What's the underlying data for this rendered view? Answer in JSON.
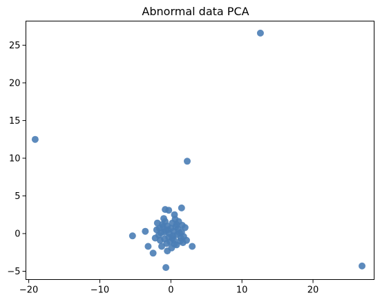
{
  "chart_data": {
    "type": "scatter",
    "title": "Abnormal data PCA",
    "xlabel": "",
    "ylabel": "",
    "xlim": [
      -20.4,
      28.6
    ],
    "ylim": [
      -6.1,
      28.2
    ],
    "xticks": [
      -20,
      -10,
      0,
      10,
      20
    ],
    "yticks": [
      -5,
      0,
      5,
      10,
      15,
      20,
      25
    ],
    "grid": false,
    "point_color": "#4a7db5",
    "points": [
      {
        "x": 12.6,
        "y": 26.6
      },
      {
        "x": -19.1,
        "y": 12.5
      },
      {
        "x": 2.3,
        "y": 9.6
      },
      {
        "x": 26.9,
        "y": -4.3
      },
      {
        "x": -0.7,
        "y": -4.5
      },
      {
        "x": -5.4,
        "y": -0.3
      },
      {
        "x": -3.6,
        "y": 0.3
      },
      {
        "x": -3.2,
        "y": -1.7
      },
      {
        "x": -2.5,
        "y": -2.6
      },
      {
        "x": 1.5,
        "y": 3.4
      },
      {
        "x": -0.8,
        "y": 3.2
      },
      {
        "x": -0.3,
        "y": 3.1
      },
      {
        "x": 3.0,
        "y": -1.7
      },
      {
        "x": 0.5,
        "y": 2.5
      },
      {
        "x": -1.0,
        "y": 2.0
      },
      {
        "x": 1.6,
        "y": 1.1
      },
      {
        "x": -2.0,
        "y": 0.5
      },
      {
        "x": -1.5,
        "y": -0.9
      },
      {
        "x": 1.8,
        "y": -0.4
      },
      {
        "x": -0.5,
        "y": -2.3
      },
      {
        "x": 0.8,
        "y": -1.5
      },
      {
        "x": -1.2,
        "y": 1.2
      },
      {
        "x": 0.2,
        "y": 1.4
      },
      {
        "x": 1.0,
        "y": 0.6
      },
      {
        "x": -0.9,
        "y": 0.2
      },
      {
        "x": 0.4,
        "y": -0.8
      },
      {
        "x": -0.2,
        "y": 0.0
      },
      {
        "x": 1.3,
        "y": -1.0
      },
      {
        "x": -1.7,
        "y": -0.2
      },
      {
        "x": 0.7,
        "y": 0.9
      },
      {
        "x": -0.6,
        "y": -1.3
      },
      {
        "x": 0.0,
        "y": 0.7
      },
      {
        "x": 1.1,
        "y": 1.6
      },
      {
        "x": -1.3,
        "y": -1.7
      },
      {
        "x": 0.3,
        "y": -0.3
      },
      {
        "x": -0.4,
        "y": 0.5
      },
      {
        "x": 0.9,
        "y": -0.1
      },
      {
        "x": -1.1,
        "y": 0.9
      },
      {
        "x": 1.5,
        "y": 0.2
      },
      {
        "x": -0.1,
        "y": -1.1
      },
      {
        "x": 0.6,
        "y": 1.9
      },
      {
        "x": -0.8,
        "y": 1.6
      },
      {
        "x": 2.0,
        "y": 0.8
      },
      {
        "x": -2.2,
        "y": -0.6
      },
      {
        "x": 0.1,
        "y": -1.9
      },
      {
        "x": 1.7,
        "y": -1.2
      },
      {
        "x": -1.6,
        "y": 0.7
      },
      {
        "x": 0.4,
        "y": 0.3
      },
      {
        "x": -0.3,
        "y": -0.5
      },
      {
        "x": 1.2,
        "y": 0.1
      },
      {
        "x": -0.9,
        "y": -0.7
      },
      {
        "x": 0.8,
        "y": 1.2
      },
      {
        "x": -0.5,
        "y": 1.0
      },
      {
        "x": 1.4,
        "y": -0.6
      },
      {
        "x": -1.4,
        "y": 0.1
      },
      {
        "x": 0.2,
        "y": -0.6
      },
      {
        "x": 2.2,
        "y": -0.9
      },
      {
        "x": -1.9,
        "y": 1.4
      },
      {
        "x": 0.5,
        "y": -1.4
      },
      {
        "x": -0.7,
        "y": 0.4
      }
    ]
  }
}
